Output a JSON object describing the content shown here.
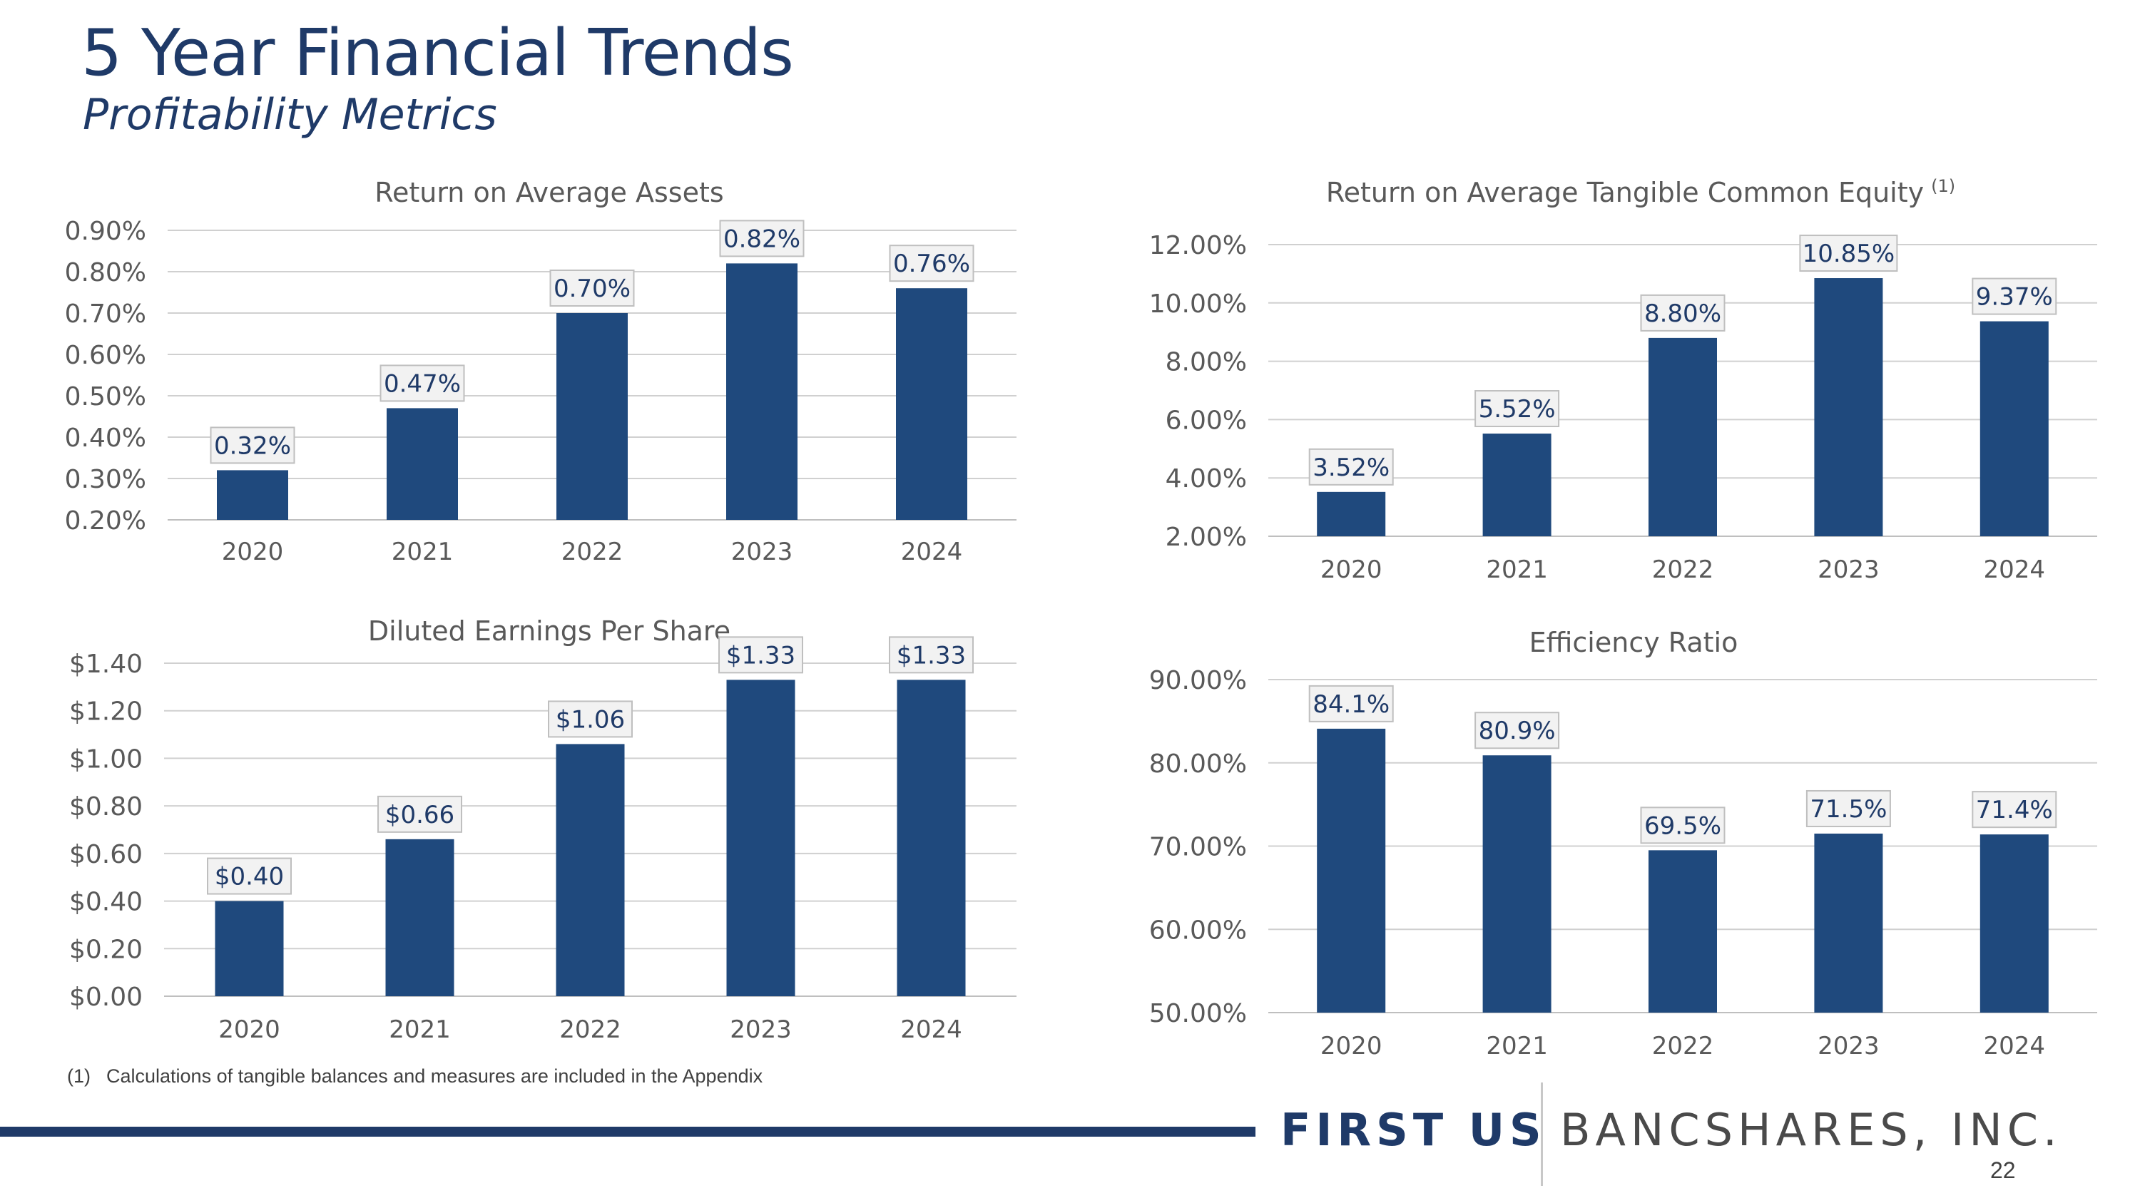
{
  "header": {
    "title": "5 Year Financial Trends",
    "subtitle": "Profitability Metrics"
  },
  "colors": {
    "bar": "#1f497d",
    "title": "#1f3a68",
    "grid": "#d0d0d0",
    "label_box": "#f2f2f2"
  },
  "chart_data": [
    {
      "id": "roaa",
      "type": "bar",
      "title": "Return on Average Assets",
      "title_sup": "",
      "categories": [
        "2020",
        "2021",
        "2022",
        "2023",
        "2024"
      ],
      "values": [
        0.32,
        0.47,
        0.7,
        0.82,
        0.76
      ],
      "value_labels": [
        "0.32%",
        "0.47%",
        "0.70%",
        "0.82%",
        "0.76%"
      ],
      "ylim": [
        0.2,
        0.9
      ],
      "yticks": [
        "0.20%",
        "0.30%",
        "0.40%",
        "0.50%",
        "0.60%",
        "0.70%",
        "0.80%",
        "0.90%"
      ],
      "xlabel": "",
      "ylabel": "",
      "grid": true
    },
    {
      "id": "rotce",
      "type": "bar",
      "title": "Return on Average Tangible Common Equity",
      "title_sup": "(1)",
      "categories": [
        "2020",
        "2021",
        "2022",
        "2023",
        "2024"
      ],
      "values": [
        3.52,
        5.52,
        8.8,
        10.85,
        9.37
      ],
      "value_labels": [
        "3.52%",
        "5.52%",
        "8.80%",
        "10.85%",
        "9.37%"
      ],
      "ylim": [
        2.0,
        12.0
      ],
      "yticks": [
        "2.00%",
        "4.00%",
        "6.00%",
        "8.00%",
        "10.00%",
        "12.00%"
      ],
      "xlabel": "",
      "ylabel": "",
      "grid": true
    },
    {
      "id": "eps",
      "type": "bar",
      "title": "Diluted Earnings Per Share",
      "title_sup": "",
      "categories": [
        "2020",
        "2021",
        "2022",
        "2023",
        "2024"
      ],
      "values": [
        0.4,
        0.66,
        1.06,
        1.33,
        1.33
      ],
      "value_labels": [
        "$0.40",
        "$0.66",
        "$1.06",
        "$1.33",
        "$1.33"
      ],
      "ylim": [
        0.0,
        1.4
      ],
      "yticks": [
        "$0.00",
        "$0.20",
        "$0.40",
        "$0.60",
        "$0.80",
        "$1.00",
        "$1.20",
        "$1.40"
      ],
      "xlabel": "",
      "ylabel": "",
      "grid": true
    },
    {
      "id": "efficiency",
      "type": "bar",
      "title": "Efficiency Ratio",
      "title_sup": "",
      "categories": [
        "2020",
        "2021",
        "2022",
        "2023",
        "2024"
      ],
      "values": [
        84.1,
        80.9,
        69.5,
        71.5,
        71.4
      ],
      "value_labels": [
        "84.1%",
        "80.9%",
        "69.5%",
        "71.5%",
        "71.4%"
      ],
      "ylim": [
        50.0,
        90.0
      ],
      "yticks": [
        "50.00%",
        "60.00%",
        "70.00%",
        "80.00%",
        "90.00%"
      ],
      "xlabel": "",
      "ylabel": "",
      "grid": true
    }
  ],
  "footnote": {
    "num": "(1)",
    "text": "Calculations of tangible balances and measures are included in the Appendix"
  },
  "brand": {
    "part1": "FIRST US",
    "part2": "BANCSHARES, INC."
  },
  "page_number": "22"
}
